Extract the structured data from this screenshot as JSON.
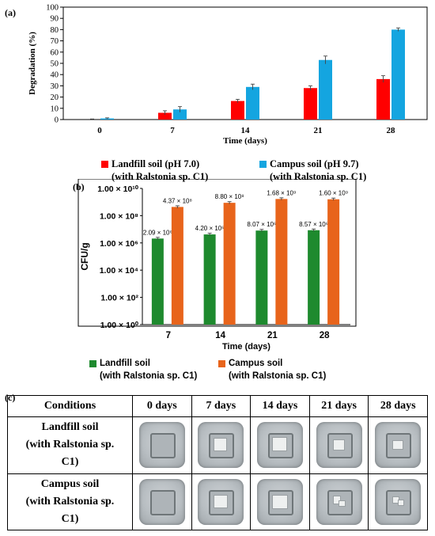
{
  "chart_data": [
    {
      "panel": "(a)",
      "type": "bar",
      "categories": [
        "0",
        "7",
        "14",
        "21",
        "28"
      ],
      "series": [
        {
          "name": "Landfill soil (pH 7.0) (with Ralstonia sp. C1)",
          "color": "#ff0000",
          "values": [
            0,
            6,
            16.5,
            28,
            36
          ],
          "errors": [
            0.5,
            1.8,
            1.5,
            2,
            3
          ]
        },
        {
          "name": "Campus soil (pH 9.7) (with Ralstonia sp. C1)",
          "color": "#14a5e0",
          "values": [
            1,
            9,
            29,
            53,
            80
          ],
          "errors": [
            0.5,
            2.5,
            2.5,
            3.5,
            1.5
          ]
        }
      ],
      "xlabel": "Time (days)",
      "ylabel": "Degradation (%)",
      "ylim": [
        0,
        100
      ],
      "yticks": [
        "0",
        "10",
        "20",
        "30",
        "40",
        "50",
        "60",
        "70",
        "80",
        "90",
        "100"
      ],
      "legend": [
        {
          "line1": "Landfill soil (pH 7.0)",
          "line2": "(with Ralstonia sp. C1)",
          "color": "#ff0000"
        },
        {
          "line1": "Campus soil (pH 9.7)",
          "line2": "(with Ralstonia sp. C1)",
          "color": "#14a5e0"
        }
      ],
      "legend_position": "bottom",
      "grid": false
    },
    {
      "panel": "(b)",
      "type": "bar",
      "yscale": "log",
      "categories": [
        "7",
        "14",
        "21",
        "28"
      ],
      "series": [
        {
          "name": "Landfill soil (with Ralstonia sp. C1)",
          "color": "#1e8a2e",
          "values": [
            2090000,
            4200000,
            8070000,
            8570000
          ],
          "labels": [
            "2.09 × 10⁶",
            "4.20 × 10⁶",
            "8.07 × 10⁶",
            "8.57 × 10⁶"
          ]
        },
        {
          "name": "Campus soil (with Ralstonia sp. C1)",
          "color": "#e8641b",
          "values": [
            437000000,
            880000000,
            1680000000,
            1600000000
          ],
          "labels": [
            "4.37 × 10⁸",
            "8.80 × 10⁸",
            "1.68 × 10⁹",
            "1.60 × 10⁹"
          ]
        }
      ],
      "xlabel": "Time (days)",
      "ylabel": "CFU/g",
      "ylim": [
        1,
        10000000000
      ],
      "yticks": [
        "1.00 × 10⁰",
        "1.00 × 10²",
        "1.00 × 10⁴",
        "1.00 × 10⁶",
        "1.00 × 10⁸",
        "1.00 × 10¹⁰"
      ],
      "legend": [
        {
          "line1": "Landfill soil",
          "line2": "(with Ralstonia sp. C1)",
          "color": "#1e8a2e"
        },
        {
          "line1": "Campus soil",
          "line2": "(with Ralstonia sp. C1)",
          "color": "#e8641b"
        }
      ],
      "legend_position": "bottom",
      "grid": false
    },
    {
      "panel": "(c)",
      "type": "table",
      "columns": [
        "Conditions",
        "0 days",
        "7 days",
        "14 days",
        "21 days",
        "28 days"
      ],
      "rows": [
        {
          "condition": [
            "Landfill soil",
            "(with Ralstonia sp.",
            "C1)"
          ]
        },
        {
          "condition": [
            "Campus soil",
            "(with Ralstonia sp.",
            "C1)"
          ]
        }
      ]
    }
  ]
}
